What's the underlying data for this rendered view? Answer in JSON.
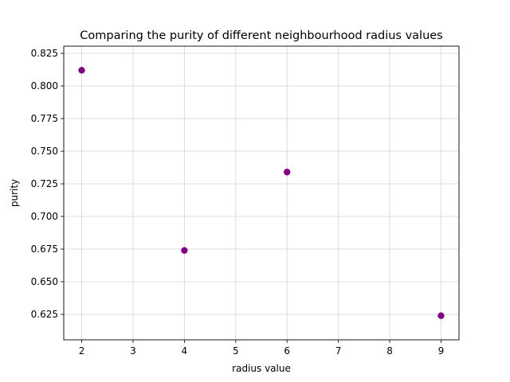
{
  "chart_data": {
    "type": "scatter",
    "title": "Comparing the purity of different neighbourhood radius values",
    "xlabel": "radius value",
    "ylabel": "purity",
    "x": [
      2,
      4,
      6,
      9
    ],
    "y": [
      0.812,
      0.674,
      0.734,
      0.624
    ],
    "xlim": [
      1.65,
      9.35
    ],
    "ylim": [
      0.6055,
      0.8305
    ],
    "xticks": [
      2,
      3,
      4,
      5,
      6,
      7,
      8,
      9
    ],
    "yticks": [
      0.625,
      0.65,
      0.675,
      0.7,
      0.725,
      0.75,
      0.775,
      0.8,
      0.825
    ],
    "xtick_labels": [
      "2",
      "3",
      "4",
      "5",
      "6",
      "7",
      "8",
      "9"
    ],
    "ytick_labels": [
      "0.625",
      "0.650",
      "0.675",
      "0.700",
      "0.725",
      "0.750",
      "0.775",
      "0.800",
      "0.825"
    ],
    "grid": true,
    "marker_color": "#800080",
    "grid_color": "#d3d3d3"
  }
}
